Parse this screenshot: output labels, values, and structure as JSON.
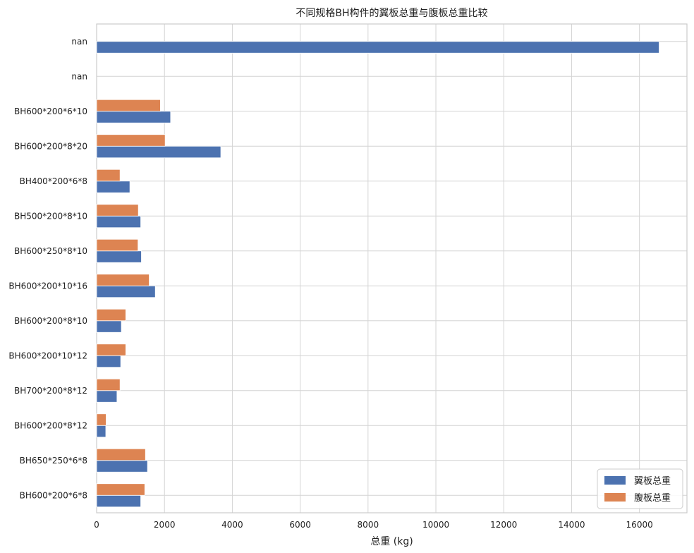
{
  "chart_data": {
    "type": "bar",
    "orientation": "horizontal",
    "title": "不同规格BH构件的翼板总重与腹板总重比较",
    "xlabel": "总重 (kg)",
    "ylabel": "",
    "xlim": [
      0,
      17400
    ],
    "xticks": [
      0,
      2000,
      4000,
      6000,
      8000,
      10000,
      12000,
      14000,
      16000
    ],
    "grid": true,
    "legend_position": "bottom-right",
    "categories": [
      "nan",
      "nan",
      "BH600*200*6*10",
      "BH600*200*8*20",
      "BH400*200*6*8",
      "BH500*200*8*10",
      "BH600*250*8*10",
      "BH600*200*10*16",
      "BH600*200*8*10",
      "BH600*200*10*12",
      "BH700*200*8*12",
      "BH600*200*8*12",
      "BH650*250*6*8",
      "BH600*200*6*8"
    ],
    "series": [
      {
        "name": "翼板总重",
        "color": "#4c72b0",
        "values": [
          16580,
          0,
          2180,
          3660,
          980,
          1300,
          1320,
          1730,
          730,
          710,
          600,
          270,
          1500,
          1300
        ]
      },
      {
        "name": "腹板总重",
        "color": "#dd8452",
        "values": [
          0,
          0,
          1880,
          2020,
          690,
          1230,
          1220,
          1550,
          860,
          860,
          690,
          280,
          1440,
          1420
        ]
      }
    ]
  }
}
